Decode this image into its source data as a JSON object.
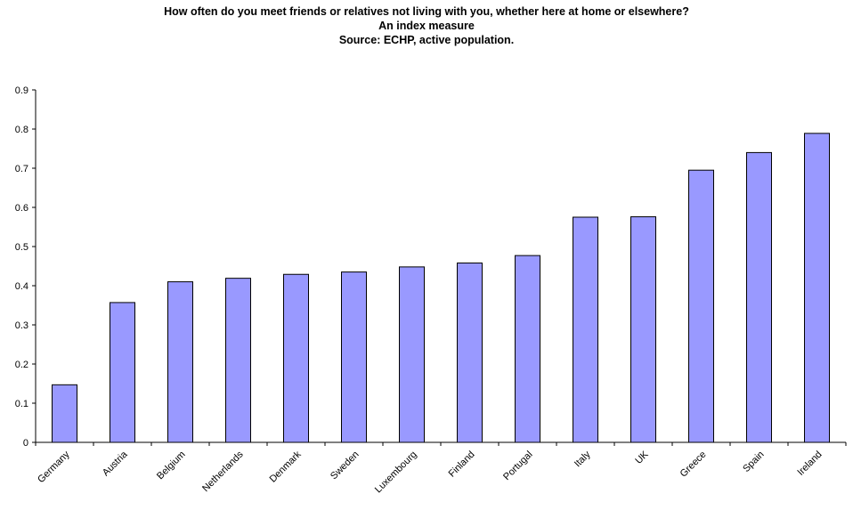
{
  "chart_data": {
    "type": "bar",
    "title": "How often do you meet friends or relatives not living with you, whether here at home or elsewhere?",
    "subtitle": "An index measure",
    "source": "Source: ECHP, active population.",
    "categories": [
      "Germany",
      "Austria",
      "Belgium",
      "Netherlands",
      "Denmark",
      "Sweden",
      "Luxembourg",
      "Finland",
      "Portugal",
      "Italy",
      "UK",
      "Greece",
      "Spain",
      "Ireland"
    ],
    "values": [
      0.147,
      0.357,
      0.41,
      0.419,
      0.429,
      0.435,
      0.448,
      0.458,
      0.477,
      0.575,
      0.576,
      0.695,
      0.74,
      0.789
    ],
    "xlabel": "",
    "ylabel": "",
    "ylim": [
      0,
      0.9
    ],
    "yticks": [
      "0",
      "0.1",
      "0.2",
      "0.3",
      "0.4",
      "0.5",
      "0.6",
      "0.7",
      "0.8",
      "0.9"
    ],
    "grid": false,
    "legend": "none",
    "bar_color": "#9999ff"
  }
}
